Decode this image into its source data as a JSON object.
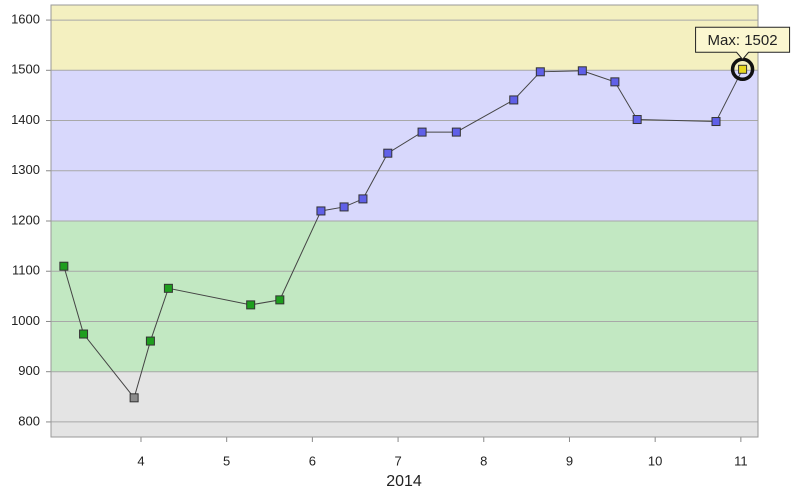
{
  "chart_data": {
    "type": "line",
    "x_label": "2014",
    "x": [
      3.1,
      3.33,
      3.92,
      4.11,
      4.32,
      5.28,
      5.62,
      6.1,
      6.37,
      6.59,
      6.88,
      7.28,
      7.68,
      8.35,
      8.66,
      9.15,
      9.53,
      9.79,
      10.71,
      11.02
    ],
    "values": [
      1110,
      975,
      848,
      961,
      1066,
      1033,
      1043,
      1220,
      1228,
      1244,
      1335,
      1377,
      1377,
      1441,
      1497,
      1499,
      1477,
      1402,
      1398,
      1502
    ],
    "line_color": "#444444",
    "xlim": [
      2.95,
      11.2
    ],
    "ylim": [
      770,
      1630
    ],
    "xticks": [
      4,
      5,
      6,
      7,
      8,
      9,
      10,
      11
    ],
    "yticks": [
      800,
      900,
      1000,
      1100,
      1200,
      1300,
      1400,
      1500,
      1600
    ],
    "grid": true,
    "bands": [
      {
        "from": 770,
        "to": 900,
        "color": "#e4e4e4",
        "marker": "#8c8c8c"
      },
      {
        "from": 900,
        "to": 1200,
        "color": "#c2e8c2",
        "marker": "#1e9e1e"
      },
      {
        "from": 1200,
        "to": 1500,
        "color": "#d8d8fc",
        "marker": "#6060e8"
      },
      {
        "from": 1500,
        "to": 1630,
        "color": "#f4f0c0",
        "marker": "#e8d820"
      }
    ],
    "annotation": "Max: 1502"
  }
}
